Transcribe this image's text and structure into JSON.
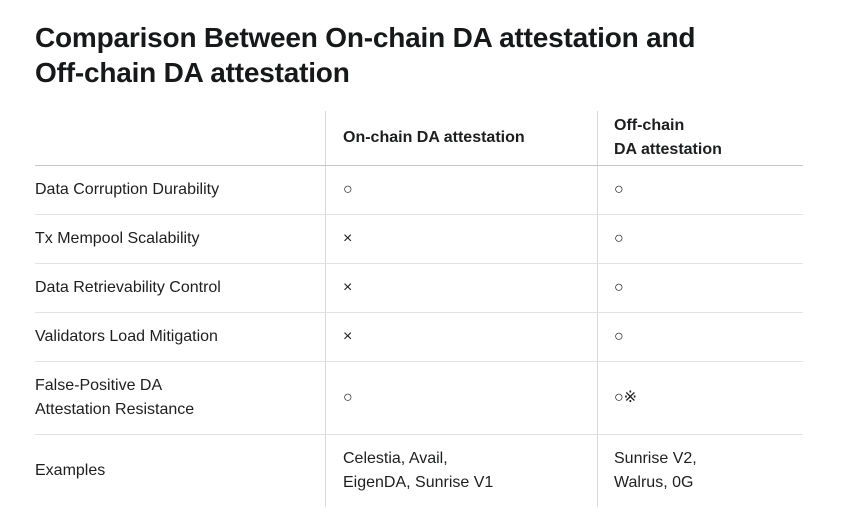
{
  "title": {
    "line1": "Comparison Between On-chain DA attestation and",
    "line2": "Off-chain DA attestation"
  },
  "table": {
    "header": {
      "col1": "",
      "col2": "On-chain DA attestation",
      "col3": "Off-chain\nDA attestation"
    },
    "rows": [
      {
        "label": "Data Corruption Durability",
        "onchain": "○",
        "offchain": "○"
      },
      {
        "label": "Tx Mempool Scalability",
        "onchain": "×",
        "offchain": "○"
      },
      {
        "label": "Data Retrievability Control",
        "onchain": "×",
        "offchain": "○"
      },
      {
        "label": "Validators Load Mitigation",
        "onchain": "×",
        "offchain": "○"
      },
      {
        "label": "False-Positive DA\nAttestation Resistance",
        "onchain": "○",
        "offchain": "○※"
      },
      {
        "label": "Examples",
        "onchain": "Celestia, Avail,\nEigenDA, Sunrise V1",
        "offchain": "Sunrise V2,\nWalrus, 0G"
      }
    ],
    "legend": {
      "circle_symbol": "○",
      "cross_symbol": "×",
      "reference_mark_symbol": "※"
    },
    "colors": {
      "title_text": "#17181a",
      "body_text": "#1d1e20",
      "header_border": "#c6c6c6",
      "row_border": "#e2e2e2",
      "column_divider": "#d8d8d8",
      "background": "#ffffff"
    }
  }
}
